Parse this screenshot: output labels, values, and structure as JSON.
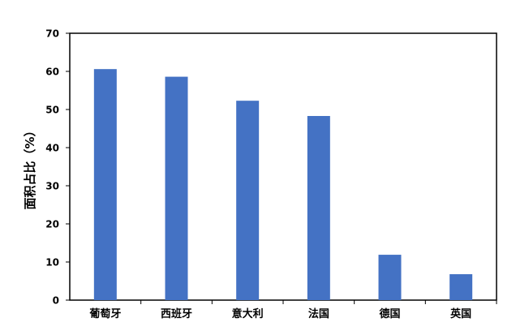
{
  "chart_data": {
    "type": "bar",
    "title": "",
    "xlabel": "",
    "ylabel": "面积占比（%）",
    "categories": [
      "葡萄牙",
      "西班牙",
      "意大利",
      "法国",
      "德国",
      "英国"
    ],
    "values": [
      60.6,
      58.6,
      52.3,
      48.3,
      11.9,
      6.8
    ],
    "ylim": [
      0,
      70
    ],
    "yticks": [
      0,
      10,
      20,
      30,
      40,
      50,
      60,
      70
    ],
    "grid": false,
    "legend": "none",
    "bar_color": "#4472C4"
  }
}
